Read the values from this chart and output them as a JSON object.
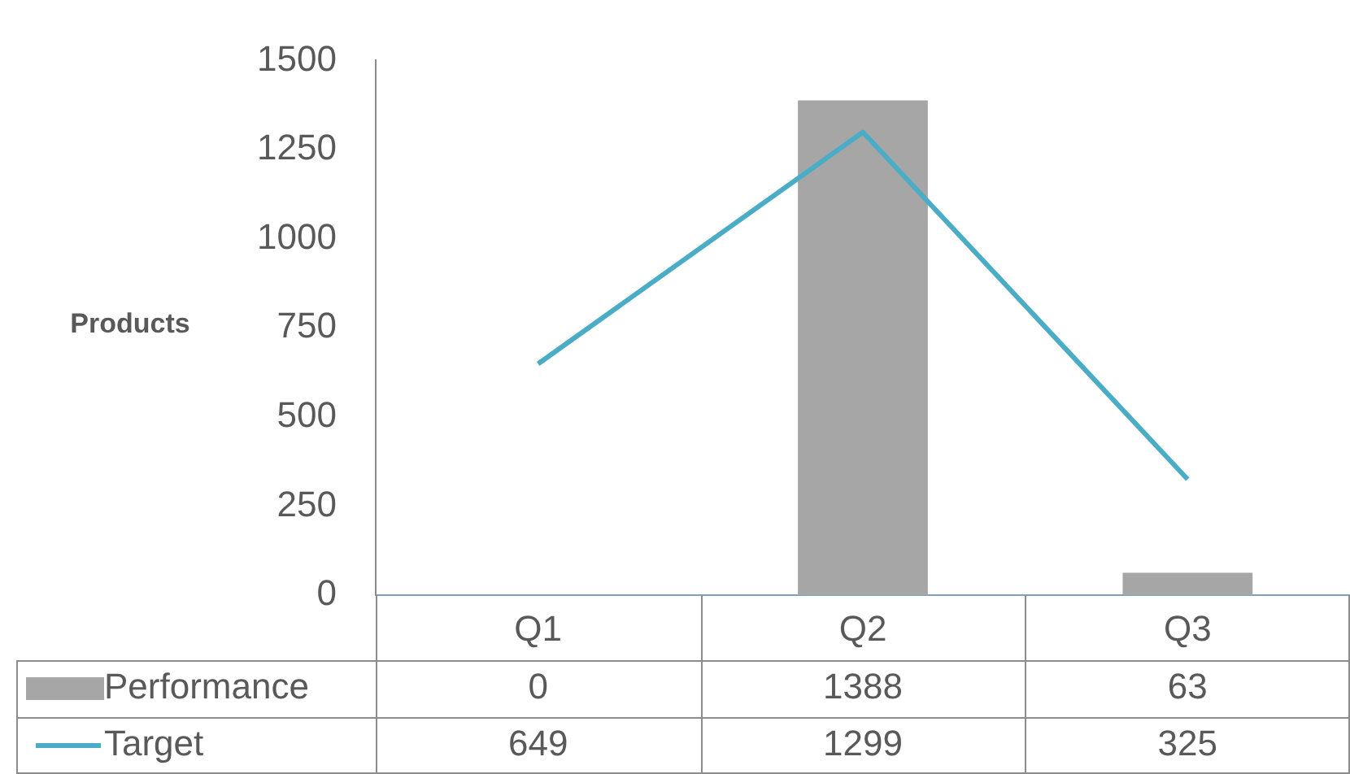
{
  "chart_data": {
    "type": "bar",
    "ylabel": "Products",
    "categories": [
      "Q1",
      "Q2",
      "Q3"
    ],
    "series": [
      {
        "name": "Performance",
        "color": "#a6a6a6",
        "values": [
          0,
          1388,
          63
        ]
      },
      {
        "name": "Target",
        "type": "line",
        "color": "#4bacc6",
        "values": [
          649,
          1299,
          325
        ]
      }
    ],
    "ylim": [
      0,
      1500
    ],
    "yticks": [
      0,
      250,
      500,
      750,
      1000,
      1250,
      1500
    ],
    "grid": false,
    "legend": "bottom",
    "data_labels": true,
    "marker": "none"
  }
}
